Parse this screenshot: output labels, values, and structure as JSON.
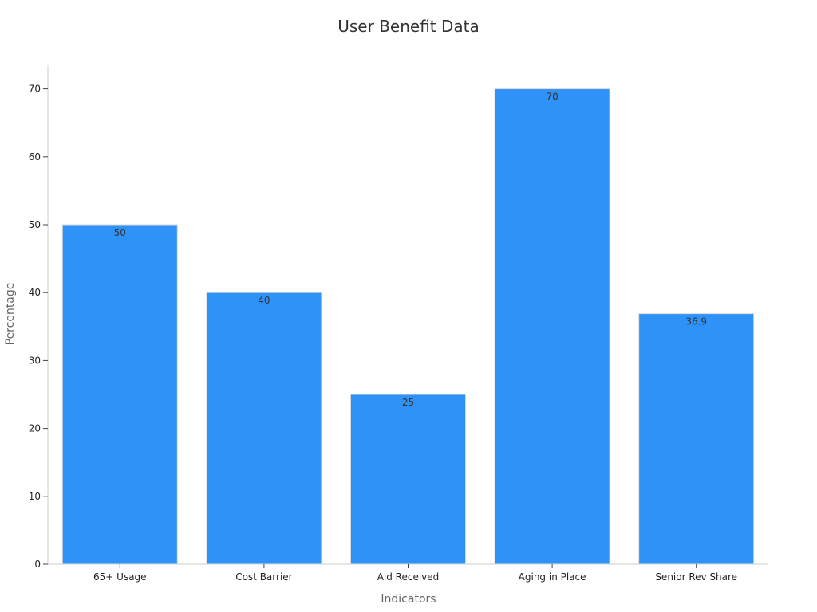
{
  "chart_data": {
    "type": "bar",
    "title": "User Benefit Data",
    "xlabel": "Indicators",
    "ylabel": "Percentage",
    "categories": [
      "65+ Usage",
      "Cost Barrier",
      "Aid Received",
      "Aging in Place",
      "Senior Rev Share"
    ],
    "values": [
      50,
      40,
      25,
      70,
      36.9
    ],
    "data_labels": [
      "50",
      "40",
      "25",
      "70",
      "36.9"
    ],
    "ylim": [
      0,
      74
    ],
    "yticks": [
      0,
      10,
      20,
      30,
      40,
      50,
      60,
      70
    ],
    "grid": false,
    "legend": "none",
    "bar_color": "#2f92f8"
  }
}
